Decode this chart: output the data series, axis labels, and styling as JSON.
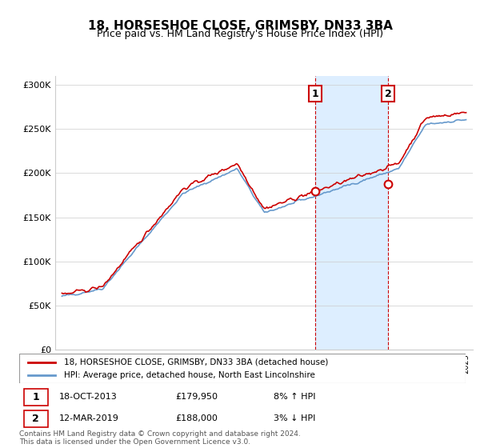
{
  "title": "18, HORSESHOE CLOSE, GRIMSBY, DN33 3BA",
  "subtitle": "Price paid vs. HM Land Registry's House Price Index (HPI)",
  "legend_line1": "18, HORSESHOE CLOSE, GRIMSBY, DN33 3BA (detached house)",
  "legend_line2": "HPI: Average price, detached house, North East Lincolnshire",
  "note1_num": "1",
  "note1_date": "18-OCT-2013",
  "note1_price": "£179,950",
  "note1_hpi": "8% ↑ HPI",
  "note2_num": "2",
  "note2_date": "12-MAR-2019",
  "note2_price": "£188,000",
  "note2_hpi": "3% ↓ HPI",
  "footer": "Contains HM Land Registry data © Crown copyright and database right 2024.\nThis data is licensed under the Open Government Licence v3.0.",
  "red_color": "#cc0000",
  "blue_color": "#6699cc",
  "shade_color": "#ddeeff",
  "marker1_x": 2013.8,
  "marker2_x": 2019.2,
  "ylim_min": 0,
  "ylim_max": 310000,
  "xlim_min": 1994.5,
  "xlim_max": 2025.5
}
